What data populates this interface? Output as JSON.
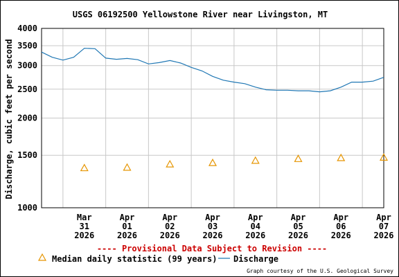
{
  "chart_data": {
    "type": "line",
    "title": "USGS 06192500 Yellowstone River near Livingston, MT",
    "ylabel": "Discharge, cubic feet per second",
    "xlabel": "",
    "yscale": "log",
    "ylim": [
      1000,
      4000
    ],
    "yticks": [
      {
        "value": 1000,
        "label": "1000"
      },
      {
        "value": 1500,
        "label": "1500"
      },
      {
        "value": 2000,
        "label": "2000"
      },
      {
        "value": 2500,
        "label": "2500"
      },
      {
        "value": 3000,
        "label": "3000"
      },
      {
        "value": 3500,
        "label": "3500"
      },
      {
        "value": 4000,
        "label": "4000"
      }
    ],
    "xlim": [
      "2026-03-30T12:00",
      "2026-04-07T12:00"
    ],
    "xticks": [
      {
        "value": "2026-03-31",
        "lines": [
          "Mar",
          "31",
          "2026"
        ]
      },
      {
        "value": "2026-04-01",
        "lines": [
          "Apr",
          "01",
          "2026"
        ]
      },
      {
        "value": "2026-04-02",
        "lines": [
          "Apr",
          "02",
          "2026"
        ]
      },
      {
        "value": "2026-04-03",
        "lines": [
          "Apr",
          "03",
          "2026"
        ]
      },
      {
        "value": "2026-04-04",
        "lines": [
          "Apr",
          "04",
          "2026"
        ]
      },
      {
        "value": "2026-04-05",
        "lines": [
          "Apr",
          "05",
          "2026"
        ]
      },
      {
        "value": "2026-04-06",
        "lines": [
          "Apr",
          "06",
          "2026"
        ]
      },
      {
        "value": "2026-04-07",
        "lines": [
          "Apr",
          "07",
          "2026"
        ]
      }
    ],
    "grid": true,
    "series": [
      {
        "name": "Discharge",
        "color": "#1f77b4",
        "points": [
          [
            "2026-03-30T12:00",
            3330
          ],
          [
            "2026-03-30T18:00",
            3200
          ],
          [
            "2026-03-31T00:00",
            3130
          ],
          [
            "2026-03-31T06:00",
            3200
          ],
          [
            "2026-03-31T12:00",
            3430
          ],
          [
            "2026-03-31T18:00",
            3420
          ],
          [
            "2026-04-01T00:00",
            3180
          ],
          [
            "2026-04-01T06:00",
            3150
          ],
          [
            "2026-04-01T12:00",
            3170
          ],
          [
            "2026-04-01T18:00",
            3140
          ],
          [
            "2026-04-02T00:00",
            3040
          ],
          [
            "2026-04-02T06:00",
            3070
          ],
          [
            "2026-04-02T12:00",
            3120
          ],
          [
            "2026-04-02T18:00",
            3060
          ],
          [
            "2026-04-03T00:00",
            2960
          ],
          [
            "2026-04-03T06:00",
            2880
          ],
          [
            "2026-04-03T12:00",
            2760
          ],
          [
            "2026-04-03T18:00",
            2680
          ],
          [
            "2026-04-04T00:00",
            2640
          ],
          [
            "2026-04-04T06:00",
            2610
          ],
          [
            "2026-04-04T12:00",
            2540
          ],
          [
            "2026-04-04T18:00",
            2490
          ],
          [
            "2026-04-05T00:00",
            2480
          ],
          [
            "2026-04-05T06:00",
            2480
          ],
          [
            "2026-04-05T12:00",
            2470
          ],
          [
            "2026-04-05T18:00",
            2470
          ],
          [
            "2026-04-06T00:00",
            2450
          ],
          [
            "2026-04-06T06:00",
            2470
          ],
          [
            "2026-04-06T12:00",
            2540
          ],
          [
            "2026-04-06T18:00",
            2640
          ],
          [
            "2026-04-07T00:00",
            2640
          ],
          [
            "2026-04-07T06:00",
            2660
          ],
          [
            "2026-04-07T12:00",
            2740
          ]
        ]
      },
      {
        "name": "Median daily statistic (99 years)",
        "color": "#e69500",
        "marker": "triangle",
        "points": [
          [
            "2026-03-31",
            1360
          ],
          [
            "2026-04-01",
            1365
          ],
          [
            "2026-04-02",
            1400
          ],
          [
            "2026-04-03",
            1415
          ],
          [
            "2026-04-04",
            1440
          ],
          [
            "2026-04-05",
            1460
          ],
          [
            "2026-04-06",
            1470
          ],
          [
            "2026-04-07",
            1475
          ]
        ]
      }
    ],
    "annotation": "---- Provisional Data Subject to Revision ----",
    "annotation_color": "#cc0000",
    "legend": [
      {
        "label": "Median daily statistic (99 years)",
        "marker": "triangle",
        "color": "#e69500"
      },
      {
        "label": "Discharge",
        "marker": "line",
        "color": "#1f77b4"
      }
    ],
    "legend_position": "bottom",
    "credit": "Graph courtesy of the U.S. Geological Survey"
  }
}
